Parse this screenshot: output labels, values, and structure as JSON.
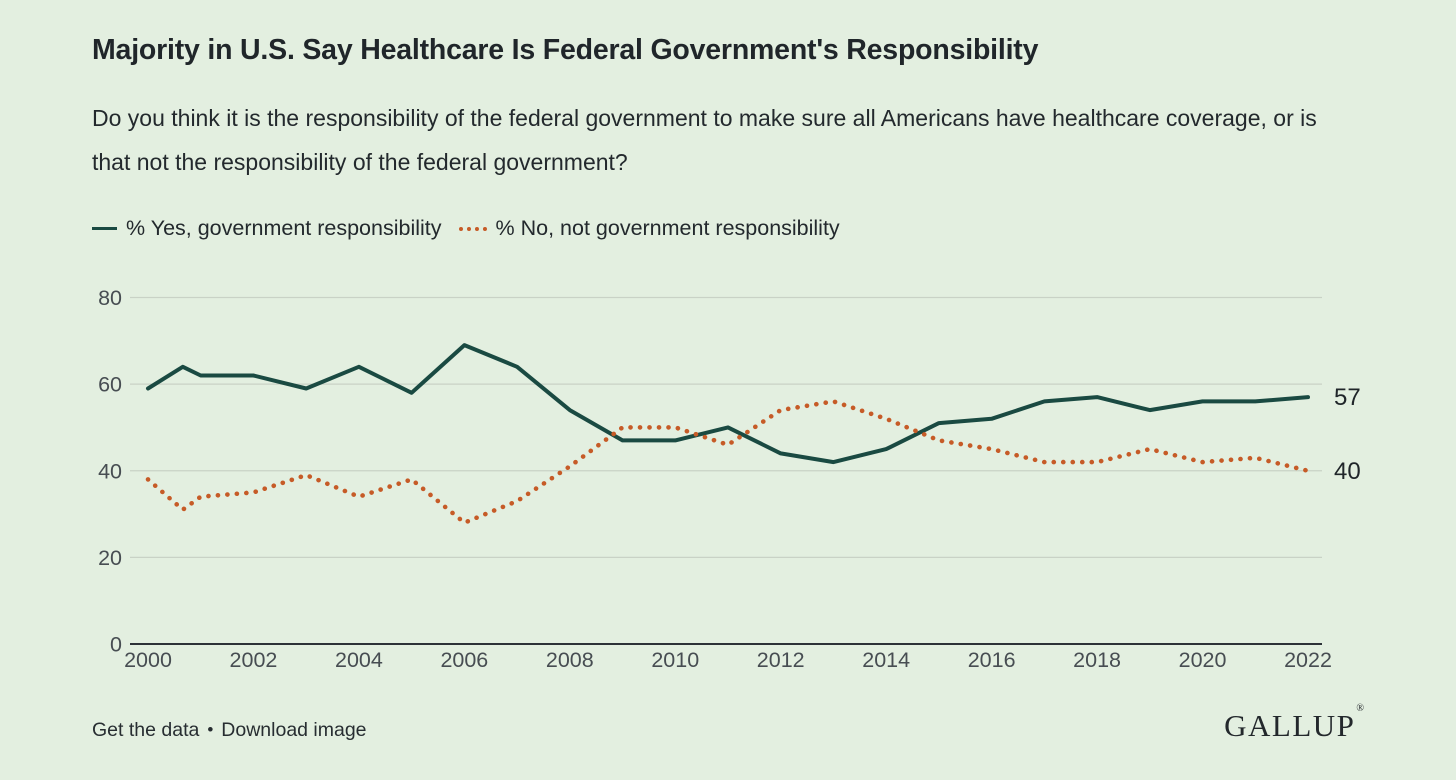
{
  "header": {
    "title": "Majority in U.S. Say Healthcare Is Federal Government's Responsibility",
    "subtitle": "Do you think it is the responsibility of the federal government to make sure all Americans have healthcare coverage, or is that not the responsibility of the federal government?"
  },
  "legend": {
    "yes": "% Yes, government responsibility",
    "no": "% No, not government responsibility"
  },
  "colors": {
    "background": "#e3efe0",
    "yes_line": "#1a4a42",
    "no_line": "#c65b27",
    "ink": "#20262a",
    "tick": "#474d52",
    "gridline": "#c9d2c6",
    "axis": "#2c3237"
  },
  "chart_data": {
    "type": "line",
    "title": "Majority in U.S. Say Healthcare Is Federal Government's Responsibility",
    "subtitle": "Do you think it is the responsibility of the federal government to make sure all Americans have healthcare coverage, or is that not the responsibility of the federal government?",
    "xlabel": "",
    "ylabel": "%",
    "ylim": [
      0,
      80
    ],
    "xlim": [
      2000,
      2022
    ],
    "grid": true,
    "legend_position": "top-left",
    "x": [
      2000,
      2000.66,
      2001,
      2002,
      2003,
      2004,
      2005,
      2006,
      2007,
      2008,
      2009,
      2010,
      2011,
      2012,
      2013,
      2014,
      2015,
      2016,
      2017,
      2018,
      2019,
      2020,
      2021,
      2022
    ],
    "x_ticks": [
      2000,
      2002,
      2004,
      2006,
      2008,
      2010,
      2012,
      2014,
      2016,
      2018,
      2020,
      2022
    ],
    "y_ticks": [
      0,
      20,
      40,
      60,
      80
    ],
    "series": [
      {
        "name": "% Yes, government responsibility",
        "style": "solid",
        "color": "#1a4a42",
        "end_label": "57",
        "values": [
          59,
          64,
          62,
          62,
          59,
          64,
          58,
          69,
          64,
          54,
          47,
          47,
          50,
          44,
          42,
          45,
          51,
          52,
          56,
          57,
          54,
          56,
          56,
          57
        ]
      },
      {
        "name": "% No, not government responsibility",
        "style": "dotted",
        "color": "#c65b27",
        "end_label": "40",
        "values": [
          38,
          31,
          34,
          35,
          39,
          34,
          38,
          28,
          33,
          41,
          50,
          50,
          46,
          54,
          56,
          52,
          47,
          45,
          42,
          42,
          45,
          42,
          43,
          40
        ]
      }
    ]
  },
  "footer": {
    "get_data": "Get the data",
    "separator": "•",
    "download": "Download image",
    "logo": "GALLUP",
    "logo_mark": "®"
  }
}
